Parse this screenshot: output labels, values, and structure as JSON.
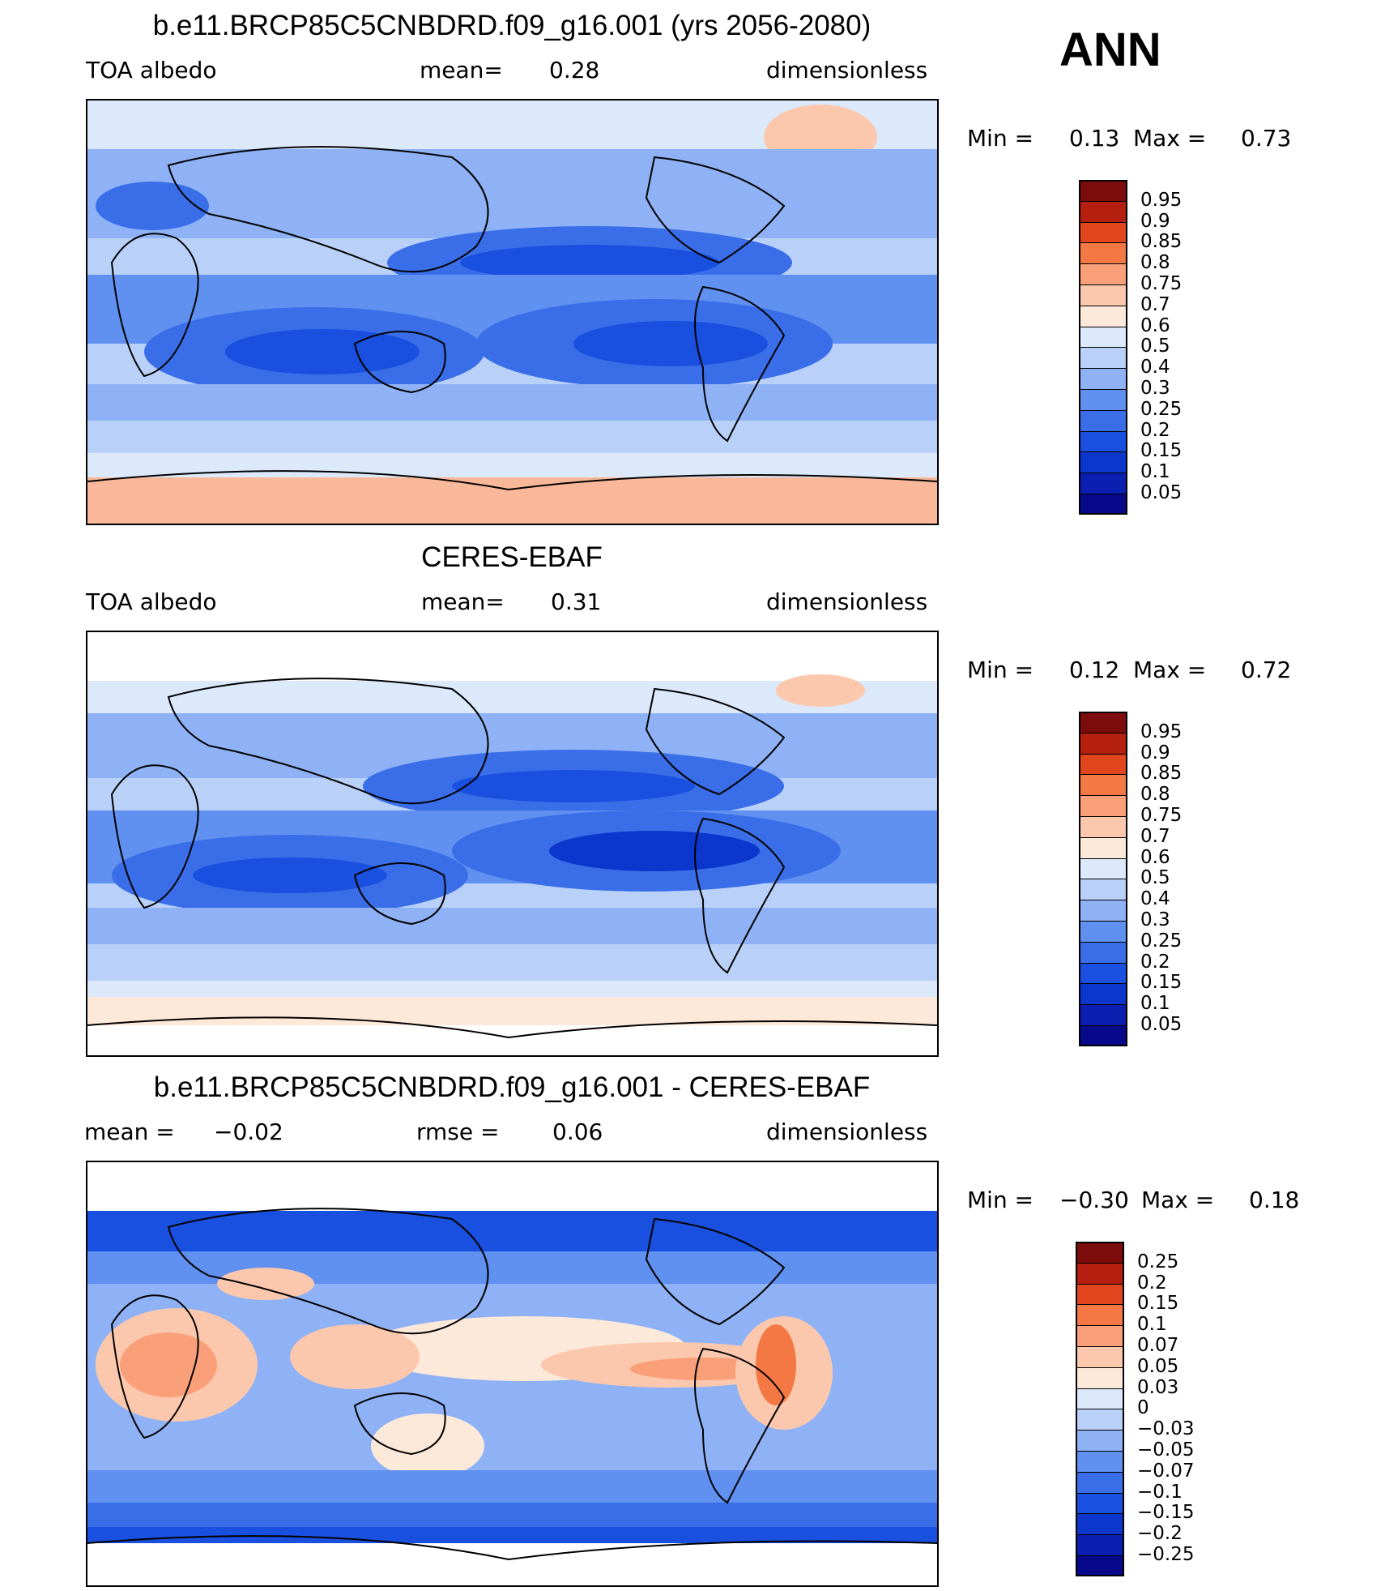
{
  "season": "ANN",
  "panels": [
    {
      "title": "b.e11.BRCP85C5CNBDRD.f09_g16.001 (yrs 2056-2080)",
      "left_label": "TOA  albedo",
      "center_label": "mean=",
      "center_value": "0.28",
      "right_label": "dimensionless",
      "min_label": "Min  =",
      "min_value": "0.13",
      "max_label": "Max  =",
      "max_value": "0.73",
      "colorbar_labels": [
        "0.95",
        "0.9",
        "0.85",
        "0.8",
        "0.75",
        "0.7",
        "0.6",
        "0.5",
        "0.4",
        "0.3",
        "0.25",
        "0.2",
        "0.15",
        "0.1",
        "0.05"
      ]
    },
    {
      "title": "CERES-EBAF",
      "left_label": "TOA  albedo",
      "center_label": "mean=",
      "center_value": "0.31",
      "right_label": "dimensionless",
      "min_label": "Min  =",
      "min_value": "0.12",
      "max_label": "Max  =",
      "max_value": "0.72",
      "colorbar_labels": [
        "0.95",
        "0.9",
        "0.85",
        "0.8",
        "0.75",
        "0.7",
        "0.6",
        "0.5",
        "0.4",
        "0.3",
        "0.25",
        "0.2",
        "0.15",
        "0.1",
        "0.05"
      ]
    },
    {
      "title": "b.e11.BRCP85C5CNBDRD.f09_g16.001 - CERES-EBAF",
      "left_label": "mean  =",
      "left_value": "−0.02",
      "center_label": "rmse  =",
      "center_value": "0.06",
      "right_label": "dimensionless",
      "min_label": "Min  =",
      "min_value": "−0.30",
      "max_label": "Max  =",
      "max_value": "0.18",
      "colorbar_labels": [
        "0.25",
        "0.2",
        "0.15",
        "0.1",
        "0.07",
        "0.05",
        "0.03",
        "0",
        "−0.03",
        "−0.05",
        "−0.07",
        "−0.1",
        "−0.15",
        "−0.2",
        "−0.25"
      ]
    }
  ],
  "chart_data": [
    {
      "type": "heatmap",
      "title": "b.e11.BRCP85C5CNBDRD.f09_g16.001 (yrs 2056-2080)",
      "variable": "TOA albedo",
      "units": "dimensionless",
      "mean": 0.28,
      "min": 0.13,
      "max": 0.73,
      "levels": [
        0.05,
        0.1,
        0.15,
        0.2,
        0.25,
        0.3,
        0.4,
        0.5,
        0.6,
        0.7,
        0.75,
        0.8,
        0.85,
        0.9,
        0.95
      ],
      "colors": [
        "#08088a",
        "#0a1fb0",
        "#0d36cc",
        "#1a50e0",
        "#3a6ee8",
        "#6090f0",
        "#8eb2f5",
        "#b9d1f8",
        "#dbe9fb",
        "#fde9da",
        "#fcc8ad",
        "#f9a07a",
        "#f47844",
        "#e2461f",
        "#b51f10",
        "#7d0c0c"
      ]
    },
    {
      "type": "heatmap",
      "title": "CERES-EBAF",
      "variable": "TOA albedo",
      "units": "dimensionless",
      "mean": 0.31,
      "min": 0.12,
      "max": 0.72,
      "levels": [
        0.05,
        0.1,
        0.15,
        0.2,
        0.25,
        0.3,
        0.4,
        0.5,
        0.6,
        0.7,
        0.75,
        0.8,
        0.85,
        0.9,
        0.95
      ],
      "colors": [
        "#08088a",
        "#0a1fb0",
        "#0d36cc",
        "#1a50e0",
        "#3a6ee8",
        "#6090f0",
        "#8eb2f5",
        "#b9d1f8",
        "#dbe9fb",
        "#fde9da",
        "#fcc8ad",
        "#f9a07a",
        "#f47844",
        "#e2461f",
        "#b51f10",
        "#7d0c0c"
      ]
    },
    {
      "type": "heatmap",
      "title": "b.e11.BRCP85C5CNBDRD.f09_g16.001 - CERES-EBAF",
      "units": "dimensionless",
      "mean": -0.02,
      "rmse": 0.06,
      "min": -0.3,
      "max": 0.18,
      "levels": [
        -0.25,
        -0.2,
        -0.15,
        -0.1,
        -0.07,
        -0.05,
        -0.03,
        0,
        0.03,
        0.05,
        0.07,
        0.1,
        0.15,
        0.2,
        0.25
      ],
      "colors": [
        "#08088a",
        "#0a1fb0",
        "#0d36cc",
        "#1a50e0",
        "#3a6ee8",
        "#6090f0",
        "#8eb2f5",
        "#b9d1f8",
        "#dbe9fb",
        "#fde9da",
        "#fcc8ad",
        "#f9a07a",
        "#f47844",
        "#e2461f",
        "#b51f10",
        "#7d0c0c"
      ]
    }
  ]
}
